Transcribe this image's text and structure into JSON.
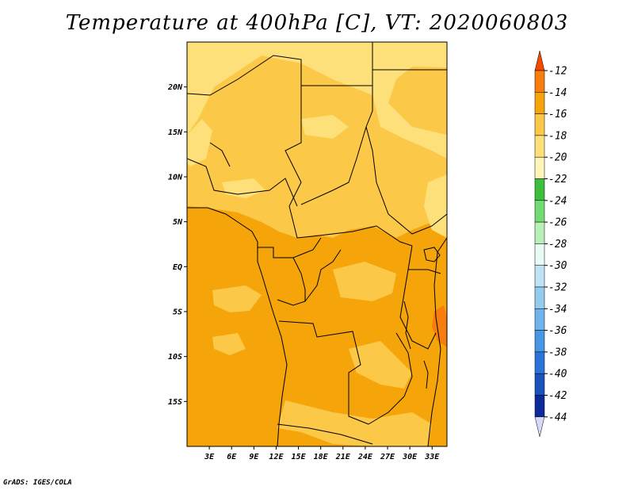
{
  "title": "Temperature at 400hPa [C], VT: 2020060803",
  "credit": "GrADS: IGES/COLA",
  "map": {
    "lon_range": [
      0,
      35
    ],
    "lat_range": [
      -20,
      25
    ],
    "lon_ticks": [
      "3E",
      "6E",
      "9E",
      "12E",
      "15E",
      "18E",
      "21E",
      "24E",
      "27E",
      "30E",
      "33E"
    ],
    "lon_tick_values": [
      3,
      6,
      9,
      12,
      15,
      18,
      21,
      24,
      27,
      30,
      33
    ],
    "lat_ticks": [
      "20N",
      "15N",
      "10N",
      "5N",
      "EQ",
      "5S",
      "10S",
      "15S"
    ],
    "lat_tick_values": [
      20,
      15,
      10,
      5,
      0,
      -5,
      -10,
      -15
    ],
    "colors": {
      "bg_fill": "#f5a50a",
      "band_16_14": "#f5a50a",
      "band_18_16": "#fcc848",
      "band_20_18": "#fde07a",
      "band_14_12": "#f77d0c",
      "border": "#000000"
    }
  },
  "colorbar": {
    "labels": [
      "-12",
      "-14",
      "-16",
      "-18",
      "-20",
      "-22",
      "-24",
      "-26",
      "-28",
      "-30",
      "-32",
      "-34",
      "-36",
      "-38",
      "-40",
      "-42",
      "-44"
    ],
    "colors": [
      "#f44a00",
      "#f77d0c",
      "#f5a50a",
      "#fcc848",
      "#fde07a",
      "#fff5b8",
      "#3cbf3c",
      "#72dc72",
      "#b8f0b8",
      "#e8fbf4",
      "#bfe3f6",
      "#96cbf0",
      "#70b2ec",
      "#4896e6",
      "#2a73da",
      "#1a52bc",
      "#0c2a9a",
      "#0a0a6e",
      "#d8d8f8"
    ]
  }
}
